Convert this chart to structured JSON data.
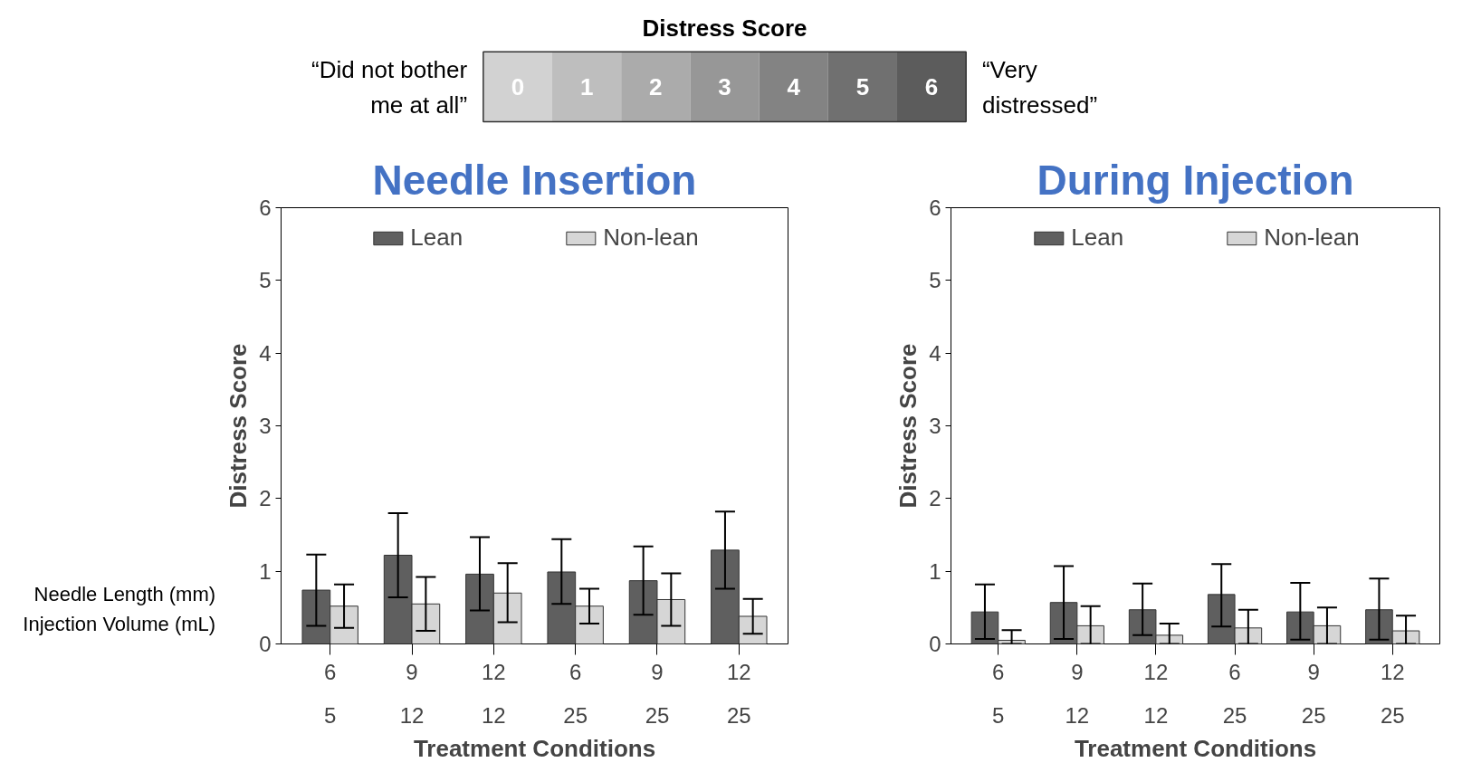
{
  "chart_data": [
    {
      "type": "heatmap",
      "title": "Distress Score",
      "categories": [
        null,
        null,
        null,
        null,
        null,
        null,
        null
      ],
      "data_labels": true,
      "y_categories": [
        null
      ],
      "cells": [
        [
          0,
          1,
          2,
          3,
          4,
          5,
          6
        ]
      ],
      "annotations": [
        "“Did not bother\nme at all”",
        "“Very\ndistressed”"
      ]
    },
    {
      "type": "bar",
      "title": "Needle Insertion",
      "ylabel": "Distress Score",
      "xlabel": "Treatment Conditions",
      "categories": [
        "6\n5",
        "9\n12",
        "12\n12",
        "6\n25",
        "9\n25",
        "12\n25"
      ],
      "series": [
        {
          "name": "Lean",
          "color": "#5f5f5f",
          "values": [
            0.74,
            1.22,
            0.96,
            0.99,
            0.87,
            1.29
          ],
          "errors": [
            [
              0.25,
              1.23
            ],
            [
              0.64,
              1.8
            ],
            [
              0.46,
              1.47
            ],
            [
              0.55,
              1.44
            ],
            [
              0.4,
              1.34
            ],
            [
              0.76,
              1.82
            ]
          ]
        },
        {
          "name": "Non-lean",
          "color": "#d6d6d6",
          "values": [
            0.52,
            0.55,
            0.7,
            0.52,
            0.61,
            0.38
          ],
          "errors": [
            [
              0.22,
              0.82
            ],
            [
              0.18,
              0.92
            ],
            [
              0.3,
              1.11
            ],
            [
              0.28,
              0.76
            ],
            [
              0.25,
              0.97
            ],
            [
              0.14,
              0.62
            ]
          ]
        }
      ],
      "ylim": [
        0,
        6
      ],
      "yticks": [
        0,
        1,
        2,
        3,
        4,
        5,
        6
      ],
      "legend": "top",
      "grid": false,
      "annotations": [
        "Needle Length (mm)",
        "Injection Volume (mL)"
      ]
    },
    {
      "type": "bar",
      "title": "During Injection",
      "ylabel": "Distress Score",
      "xlabel": "Treatment Conditions",
      "categories": [
        "6\n5",
        "9\n12",
        "12\n12",
        "6\n25",
        "9\n25",
        "12\n25"
      ],
      "series": [
        {
          "name": "Lean",
          "color": "#5f5f5f",
          "values": [
            0.44,
            0.57,
            0.47,
            0.68,
            0.44,
            0.47
          ],
          "errors": [
            [
              0.07,
              0.82
            ],
            [
              0.07,
              1.07
            ],
            [
              0.12,
              0.83
            ],
            [
              0.24,
              1.1
            ],
            [
              0.06,
              0.84
            ],
            [
              0.06,
              0.9
            ]
          ]
        },
        {
          "name": "Non-lean",
          "color": "#d6d6d6",
          "values": [
            0.05,
            0.25,
            0.12,
            0.22,
            0.25,
            0.18
          ],
          "errors": [
            [
              0,
              0.19
            ],
            [
              0,
              0.52
            ],
            [
              0,
              0.28
            ],
            [
              0,
              0.47
            ],
            [
              0,
              0.5
            ],
            [
              0,
              0.39
            ]
          ]
        }
      ],
      "ylim": [
        0,
        6
      ],
      "yticks": [
        0,
        1,
        2,
        3,
        4,
        5,
        6
      ],
      "legend": "top",
      "grid": false
    }
  ]
}
